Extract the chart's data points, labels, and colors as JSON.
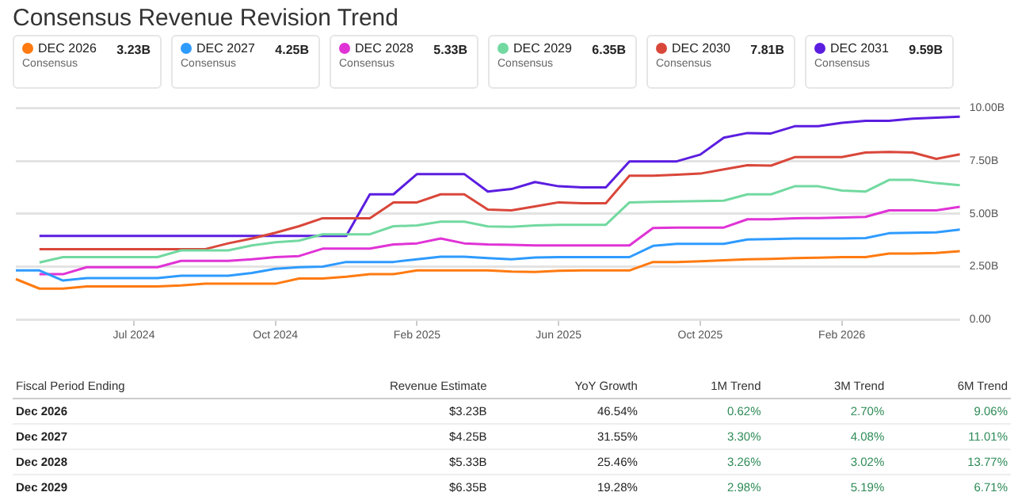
{
  "chart_data": [
    {
      "type": "line",
      "title": "Consensus Revenue Revision Trend",
      "categories": [
        null,
        null,
        null,
        null,
        null,
        "Jul 2024",
        null,
        null,
        null,
        null,
        null,
        "Oct 2024",
        null,
        null,
        null,
        null,
        null,
        "Feb 2025",
        null,
        null,
        null,
        null,
        null,
        "Jun 2025",
        null,
        null,
        null,
        null,
        null,
        "Oct 2025",
        null,
        null,
        null,
        null,
        null,
        "Feb 2026",
        null,
        null,
        null,
        null,
        null
      ],
      "series": [
        {
          "name": "DEC 2026",
          "color": "#ff7a10",
          "values": [
            1.91,
            1.46,
            1.46,
            1.56,
            1.56,
            1.56,
            1.56,
            1.61,
            1.69,
            1.69,
            1.69,
            1.69,
            1.94,
            1.94,
            2.02,
            2.14,
            2.14,
            2.32,
            2.32,
            2.32,
            2.32,
            2.27,
            2.25,
            2.3,
            2.32,
            2.32,
            2.32,
            2.72,
            2.72,
            2.75,
            2.8,
            2.85,
            2.87,
            2.9,
            2.92,
            2.95,
            2.95,
            3.12,
            3.12,
            3.15,
            3.23
          ]
        },
        {
          "name": "DEC 2027",
          "color": "#2e9bff",
          "values": [
            2.32,
            2.32,
            1.84,
            1.96,
            1.96,
            1.96,
            1.96,
            2.07,
            2.07,
            2.07,
            2.2,
            2.4,
            2.47,
            2.5,
            2.72,
            2.72,
            2.72,
            2.85,
            2.97,
            2.97,
            2.9,
            2.85,
            2.93,
            2.95,
            2.95,
            2.95,
            2.95,
            3.48,
            3.58,
            3.58,
            3.58,
            3.78,
            3.8,
            3.83,
            3.83,
            3.83,
            3.85,
            4.08,
            4.1,
            4.12,
            4.25
          ]
        },
        {
          "name": "DEC 2028",
          "color": "#e033d6",
          "values": [
            null,
            2.14,
            2.14,
            2.47,
            2.47,
            2.47,
            2.47,
            2.77,
            2.77,
            2.77,
            2.85,
            2.95,
            3.0,
            3.35,
            3.35,
            3.35,
            3.55,
            3.6,
            3.83,
            3.6,
            3.55,
            3.53,
            3.5,
            3.5,
            3.5,
            3.5,
            3.5,
            4.33,
            4.35,
            4.35,
            4.35,
            4.74,
            4.74,
            4.79,
            4.8,
            4.82,
            4.85,
            5.16,
            5.16,
            5.16,
            5.33
          ]
        },
        {
          "name": "DEC 2029",
          "color": "#72d9a0",
          "values": [
            null,
            2.7,
            2.95,
            2.95,
            2.95,
            2.95,
            2.95,
            3.27,
            3.27,
            3.27,
            3.5,
            3.65,
            3.73,
            4.03,
            4.03,
            4.03,
            4.41,
            4.45,
            4.63,
            4.63,
            4.4,
            4.38,
            4.45,
            4.48,
            4.48,
            4.48,
            5.54,
            5.56,
            5.58,
            5.6,
            5.62,
            5.92,
            5.92,
            6.3,
            6.3,
            6.1,
            6.05,
            6.6,
            6.6,
            6.45,
            6.35
          ]
        },
        {
          "name": "DEC 2030",
          "color": "#d9473a",
          "values": [
            null,
            3.32,
            3.32,
            3.32,
            3.32,
            3.32,
            3.32,
            3.32,
            3.32,
            3.6,
            3.83,
            4.1,
            4.41,
            4.79,
            4.79,
            4.79,
            5.54,
            5.54,
            5.92,
            5.92,
            5.2,
            5.16,
            5.35,
            5.54,
            5.5,
            5.5,
            6.8,
            6.8,
            6.85,
            6.9,
            7.1,
            7.3,
            7.28,
            7.68,
            7.68,
            7.68,
            7.9,
            7.93,
            7.9,
            7.6,
            7.81
          ]
        },
        {
          "name": "DEC 2031",
          "color": "#5b1de0",
          "values": [
            null,
            3.95,
            3.95,
            3.95,
            3.95,
            3.95,
            3.95,
            3.95,
            3.95,
            3.95,
            3.95,
            3.95,
            3.95,
            3.95,
            3.95,
            5.92,
            5.92,
            6.88,
            6.88,
            6.88,
            6.05,
            6.17,
            6.5,
            6.3,
            6.25,
            6.25,
            7.48,
            7.48,
            7.48,
            7.8,
            8.6,
            8.82,
            8.8,
            9.14,
            9.14,
            9.3,
            9.4,
            9.4,
            9.5,
            9.55,
            9.59
          ]
        }
      ],
      "annotations": [
        "3.23B",
        "4.25B",
        "5.33B",
        "6.35B",
        "7.81B",
        "9.59B",
        "Consensus",
        "Consensus",
        "Consensus",
        "Consensus",
        "Consensus",
        "Consensus"
      ],
      "ylim": [
        0,
        10
      ],
      "yticks": [
        {
          "value": 0,
          "label": "0.00"
        },
        {
          "value": 2.5,
          "label": "2.50B"
        },
        {
          "value": 5,
          "label": "5.00B"
        },
        {
          "value": 7.5,
          "label": "7.50B"
        },
        {
          "value": 10,
          "label": "10.00B"
        }
      ],
      "grid": "y",
      "legend": "top",
      "marker": "none",
      "line_style": "solid"
    },
    {
      "type": "other",
      "categories": [
        "Fiscal Period Ending",
        "Revenue Estimate",
        "YoY Growth",
        "1M Trend",
        "3M Trend",
        "6M Trend"
      ],
      "y_categories": [
        "Dec 2026",
        "Dec 2027",
        "Dec 2028",
        "Dec 2029"
      ],
      "cell_labels": [
        [
          "$3.23B",
          "46.54%",
          "0.62%",
          "2.70%",
          "9.06%"
        ],
        [
          "$4.25B",
          "31.55%",
          "3.30%",
          "4.08%",
          "11.01%"
        ],
        [
          "$5.33B",
          "25.46%",
          "3.26%",
          "3.02%",
          "13.77%"
        ],
        [
          "$6.35B",
          "19.28%",
          "2.98%",
          "5.19%",
          "6.71%"
        ]
      ],
      "colors": [
        "#222222",
        "#222222",
        "#2e8b57",
        "#2e8b57",
        "#2e8b57"
      ]
    }
  ]
}
